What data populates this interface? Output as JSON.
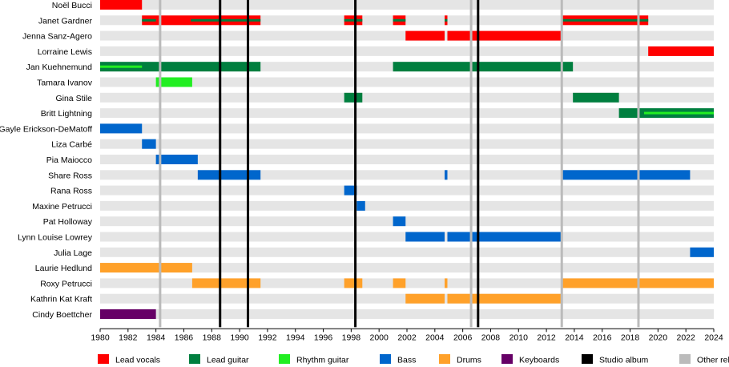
{
  "chart_data": {
    "type": "timeline",
    "title": "",
    "xlabel": "",
    "ylabel": "",
    "xlim": [
      1980,
      2024
    ],
    "xticks": [
      "1980",
      "1982",
      "1984",
      "1986",
      "1988",
      "1990",
      "1992",
      "1994",
      "1996",
      "1998",
      "2000",
      "2002",
      "2004",
      "2006",
      "2008",
      "2010",
      "2012",
      "2014",
      "2016",
      "2018",
      "2020",
      "2022",
      "2024"
    ],
    "colors": {
      "Lead vocals": "#ff0000",
      "Lead guitar": "#007f3f",
      "Rhythm guitar": "#22ee22",
      "Bass": "#0066cc",
      "Drums": "#ffa12a",
      "Keyboards": "#660066",
      "Studio album": "#000000",
      "Other release": "#bbbbbb"
    },
    "members": [
      {
        "name": "Noël Bucci",
        "bars": [
          {
            "role": "Lead vocals",
            "from": 1980.0,
            "to": 1983.0
          }
        ]
      },
      {
        "name": "Janet Gardner",
        "bars": [
          {
            "role": "Lead vocals",
            "from": 1983.0,
            "to": 1991.5
          },
          {
            "role": "Lead vocals",
            "from": 1997.5,
            "to": 1998.8
          },
          {
            "role": "Lead vocals",
            "from": 2001.0,
            "to": 2001.9
          },
          {
            "role": "Lead vocals",
            "from": 2004.7,
            "to": 2004.9
          },
          {
            "role": "Lead vocals",
            "from": 2013.1,
            "to": 2019.3
          }
        ],
        "overlays": [
          {
            "role": "Lead guitar",
            "from": 1983.0,
            "to": 1984.0
          },
          {
            "role": "Lead guitar",
            "from": 1986.5,
            "to": 1991.5
          },
          {
            "role": "Lead guitar",
            "from": 1997.5,
            "to": 1998.8
          },
          {
            "role": "Lead guitar",
            "from": 2001.0,
            "to": 2001.9
          },
          {
            "role": "Lead guitar",
            "from": 2004.7,
            "to": 2004.9
          },
          {
            "role": "Lead guitar",
            "from": 2013.1,
            "to": 2019.3
          }
        ]
      },
      {
        "name": "Jenna Sanz-Agero",
        "bars": [
          {
            "role": "Lead vocals",
            "from": 2001.9,
            "to": 2004.7
          },
          {
            "role": "Lead vocals",
            "from": 2004.9,
            "to": 2013.1
          }
        ]
      },
      {
        "name": "Lorraine Lewis",
        "bars": [
          {
            "role": "Lead vocals",
            "from": 2019.3,
            "to": 2024.0
          }
        ]
      },
      {
        "name": "Jan Kuehnemund",
        "bars": [
          {
            "role": "Lead guitar",
            "from": 1980.0,
            "to": 1991.5
          },
          {
            "role": "Lead guitar",
            "from": 2001.0,
            "to": 2013.9
          }
        ],
        "overlays": [
          {
            "role": "Rhythm guitar",
            "from": 1980.0,
            "to": 1983.0
          }
        ]
      },
      {
        "name": "Tamara Ivanov",
        "bars": [
          {
            "role": "Rhythm guitar",
            "from": 1984.0,
            "to": 1986.6
          }
        ]
      },
      {
        "name": "Gina Stile",
        "bars": [
          {
            "role": "Lead guitar",
            "from": 1997.5,
            "to": 1998.8
          },
          {
            "role": "Lead guitar",
            "from": 2013.9,
            "to": 2017.2
          }
        ]
      },
      {
        "name": "Britt Lightning",
        "bars": [
          {
            "role": "Lead guitar",
            "from": 2017.2,
            "to": 2024.0
          }
        ],
        "overlays": [
          {
            "role": "Rhythm guitar",
            "from": 2019.0,
            "to": 2024.0
          }
        ]
      },
      {
        "name": "Gayle Erickson-DeMatoff",
        "bars": [
          {
            "role": "Bass",
            "from": 1980.0,
            "to": 1983.0
          }
        ]
      },
      {
        "name": "Liza Carbé",
        "bars": [
          {
            "role": "Bass",
            "from": 1983.0,
            "to": 1984.0
          }
        ]
      },
      {
        "name": "Pia Maiocco",
        "bars": [
          {
            "role": "Bass",
            "from": 1984.0,
            "to": 1987.0
          }
        ]
      },
      {
        "name": "Share Ross",
        "bars": [
          {
            "role": "Bass",
            "from": 1987.0,
            "to": 1991.5
          },
          {
            "role": "Bass",
            "from": 2004.7,
            "to": 2004.9
          },
          {
            "role": "Bass",
            "from": 2013.1,
            "to": 2022.3
          }
        ]
      },
      {
        "name": "Rana Ross",
        "bars": [
          {
            "role": "Bass",
            "from": 1997.5,
            "to": 1998.4
          }
        ]
      },
      {
        "name": "Maxine Petrucci",
        "bars": [
          {
            "role": "Bass",
            "from": 1998.4,
            "to": 1999.0
          }
        ]
      },
      {
        "name": "Pat Holloway",
        "bars": [
          {
            "role": "Bass",
            "from": 2001.0,
            "to": 2001.9
          }
        ]
      },
      {
        "name": "Lynn Louise Lowrey",
        "bars": [
          {
            "role": "Bass",
            "from": 2001.9,
            "to": 2004.7
          },
          {
            "role": "Bass",
            "from": 2004.9,
            "to": 2013.1
          }
        ]
      },
      {
        "name": "Julia Lage",
        "bars": [
          {
            "role": "Bass",
            "from": 2022.3,
            "to": 2024.0
          }
        ]
      },
      {
        "name": "Laurie Hedlund",
        "bars": [
          {
            "role": "Drums",
            "from": 1980.0,
            "to": 1986.6
          }
        ]
      },
      {
        "name": "Roxy Petrucci",
        "bars": [
          {
            "role": "Drums",
            "from": 1986.6,
            "to": 1991.5
          },
          {
            "role": "Drums",
            "from": 1997.5,
            "to": 1998.8
          },
          {
            "role": "Drums",
            "from": 2001.0,
            "to": 2001.9
          },
          {
            "role": "Drums",
            "from": 2004.7,
            "to": 2004.9
          },
          {
            "role": "Drums",
            "from": 2013.1,
            "to": 2024.0
          }
        ]
      },
      {
        "name": "Kathrin Kat Kraft",
        "bars": [
          {
            "role": "Drums",
            "from": 2001.9,
            "to": 2004.7
          },
          {
            "role": "Drums",
            "from": 2004.9,
            "to": 2013.1
          }
        ]
      },
      {
        "name": "Cindy Boettcher",
        "bars": [
          {
            "role": "Keyboards",
            "from": 1980.0,
            "to": 1984.0
          }
        ]
      }
    ],
    "studio_albums": [
      1988.6,
      1990.6,
      1998.3,
      2007.1
    ],
    "other_releases": [
      1984.3,
      2006.6,
      2013.1,
      2018.6
    ],
    "legend": [
      "Lead vocals",
      "Lead guitar",
      "Rhythm guitar",
      "Bass",
      "Drums",
      "Keyboards",
      "Studio album",
      "Other release"
    ],
    "legend_position": "bottom"
  }
}
